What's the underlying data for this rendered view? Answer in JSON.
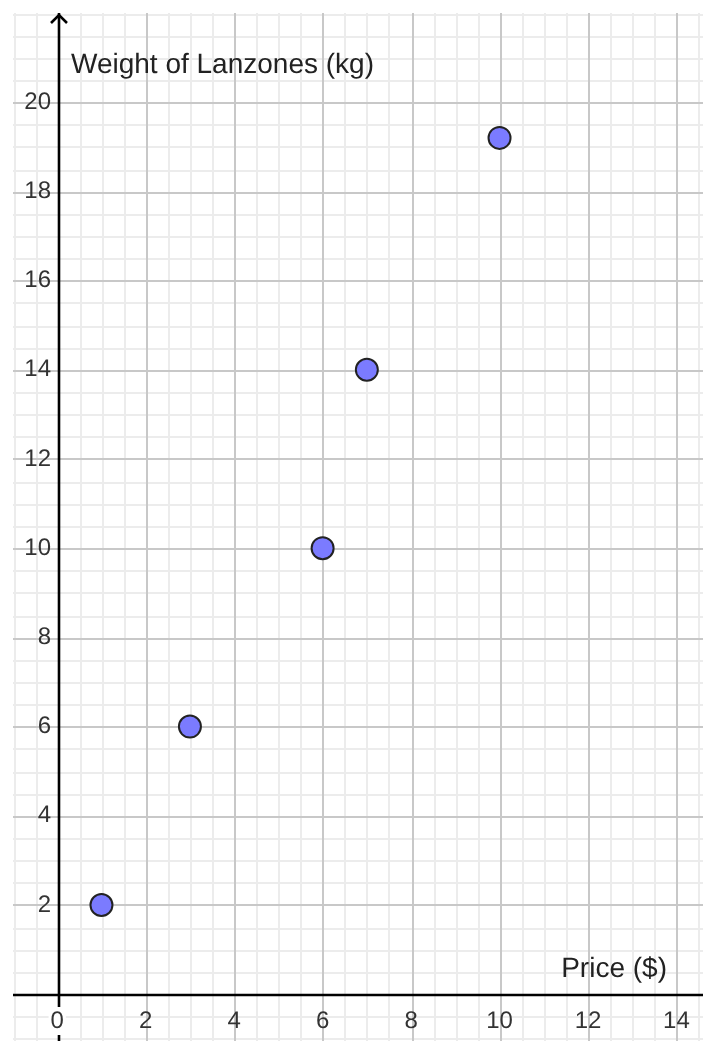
{
  "chart_data": {
    "type": "scatter",
    "xlabel": "Price ($)",
    "ylabel": "Weight of Lanzones (kg)",
    "x": [
      1,
      3,
      6,
      7,
      10
    ],
    "values": [
      2,
      6,
      10,
      14,
      19.2
    ],
    "color": "#7b7bff",
    "marker": "circle",
    "xlim": [
      -1,
      14.6
    ],
    "ylim": [
      -1.05,
      22
    ],
    "xticks": [
      0,
      2,
      4,
      6,
      8,
      10,
      12,
      14
    ],
    "yticks": [
      2,
      4,
      6,
      8,
      10,
      12,
      14,
      16,
      18,
      20
    ],
    "grid": true
  }
}
